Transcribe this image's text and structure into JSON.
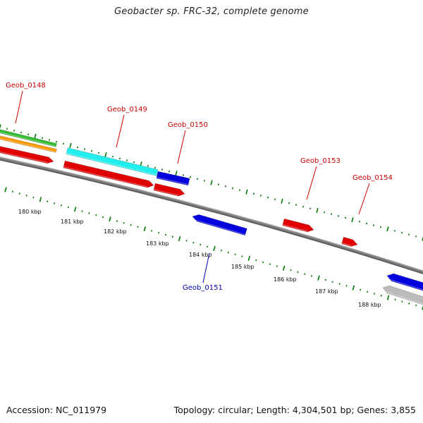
{
  "title": "Geobacter sp. FRC-32, complete genome",
  "footer": {
    "accession": "Accession: NC_011979",
    "summary": "Topology: circular; Length: 4,304,501 bp; Genes: 3,855"
  },
  "colors": {
    "backbone": "#7a7a7a",
    "forward_gene": "#e00000",
    "reverse_gene": "#0000dd",
    "forward_label": "#cc0000",
    "reverse_label": "#0000aa",
    "tick": "#007700",
    "band_green": "#33bb33",
    "band_orange": "#ff9900",
    "band_cyan": "#22eeee",
    "band_gray": "#bbbbbb"
  },
  "map": {
    "scale_labels": [
      "180 kbp",
      "181 kbp",
      "182 kbp",
      "183 kbp",
      "184 kbp",
      "185 kbp",
      "186 kbp",
      "187 kbp",
      "188 kbp"
    ],
    "gene_labels": [
      {
        "name": "Geob_0148",
        "strand": "forward"
      },
      {
        "name": "Geob_0149",
        "strand": "forward"
      },
      {
        "name": "Geob_0150",
        "strand": "forward"
      },
      {
        "name": "Geob_0151",
        "strand": "reverse"
      },
      {
        "name": "Geob_0153",
        "strand": "forward"
      },
      {
        "name": "Geob_0154",
        "strand": "forward"
      }
    ]
  }
}
